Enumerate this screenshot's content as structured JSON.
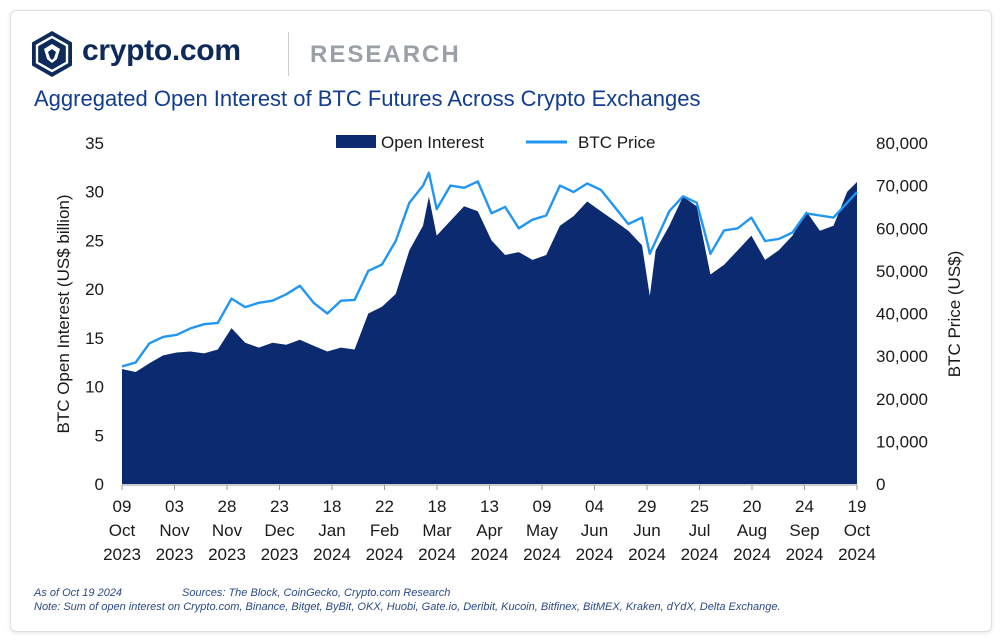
{
  "brand": {
    "name": "crypto.com",
    "section": "RESEARCH"
  },
  "title": "Aggregated Open Interest of BTC Futures Across Crypto Exchanges",
  "footer": {
    "asof": "As of Oct 19 2024",
    "sources": "Sources: The Block, CoinGecko, Crypto.com Research",
    "note": "Note: Sum of open interest on Crypto.com, Binance, Bitget, ByBit, OKX, Huobi, Gate.io, Deribit, Kucoin, Bitfinex, BitMEX, Kraken, dYdX, Delta Exchange."
  },
  "colors": {
    "open_interest": "#0b2a6f",
    "btc_price": "#2196f3",
    "title": "#123d8f"
  },
  "chart_data": {
    "type": "area",
    "x_label_note": "daily, 2023-10-09 to 2024-10-19",
    "ylabel_left": "BTC Open Interest (US$ billion)",
    "ylabel_right": "BTC Price (US$)",
    "ylim_left": [
      0,
      35
    ],
    "ylim_right": [
      0,
      80000
    ],
    "yticks_left": [
      "0",
      "5",
      "10",
      "15",
      "20",
      "25",
      "30",
      "35"
    ],
    "yticks_right": [
      "0",
      "10,000",
      "20,000",
      "30,000",
      "40,000",
      "50,000",
      "60,000",
      "70,000",
      "80,000"
    ],
    "xticks": [
      {
        "d": "09",
        "m": "Oct",
        "y": "2023"
      },
      {
        "d": "03",
        "m": "Nov",
        "y": "2023"
      },
      {
        "d": "28",
        "m": "Nov",
        "y": "2023"
      },
      {
        "d": "23",
        "m": "Dec",
        "y": "2023"
      },
      {
        "d": "18",
        "m": "Jan",
        "y": "2024"
      },
      {
        "d": "22",
        "m": "Feb",
        "y": "2024"
      },
      {
        "d": "18",
        "m": "Mar",
        "y": "2024"
      },
      {
        "d": "13",
        "m": "Apr",
        "y": "2024"
      },
      {
        "d": "09",
        "m": "May",
        "y": "2024"
      },
      {
        "d": "04",
        "m": "Jun",
        "y": "2024"
      },
      {
        "d": "29",
        "m": "Jun",
        "y": "2024"
      },
      {
        "d": "25",
        "m": "Jul",
        "y": "2024"
      },
      {
        "d": "20",
        "m": "Aug",
        "y": "2024"
      },
      {
        "d": "24",
        "m": "Sep",
        "y": "2024"
      },
      {
        "d": "19",
        "m": "Oct",
        "y": "2024"
      }
    ],
    "legend_position": "top-center",
    "grid": false,
    "series": [
      {
        "name": "Open Interest",
        "axis": "left",
        "unit": "US$ billion",
        "style": "area",
        "points": [
          [
            "2023-10-09",
            11.8
          ],
          [
            "2023-10-16",
            11.5
          ],
          [
            "2023-10-23",
            12.4
          ],
          [
            "2023-10-30",
            13.2
          ],
          [
            "2023-11-06",
            13.5
          ],
          [
            "2023-11-13",
            13.6
          ],
          [
            "2023-11-20",
            13.4
          ],
          [
            "2023-11-27",
            13.8
          ],
          [
            "2023-12-04",
            16.0
          ],
          [
            "2023-12-11",
            14.5
          ],
          [
            "2023-12-18",
            14.0
          ],
          [
            "2023-12-25",
            14.5
          ],
          [
            "2024-01-01",
            14.3
          ],
          [
            "2024-01-08",
            14.8
          ],
          [
            "2024-01-15",
            14.2
          ],
          [
            "2024-01-22",
            13.6
          ],
          [
            "2024-01-29",
            14.0
          ],
          [
            "2024-02-05",
            13.8
          ],
          [
            "2024-02-12",
            17.5
          ],
          [
            "2024-02-19",
            18.2
          ],
          [
            "2024-02-26",
            19.5
          ],
          [
            "2024-03-04",
            24.0
          ],
          [
            "2024-03-11",
            26.5
          ],
          [
            "2024-03-14",
            29.5
          ],
          [
            "2024-03-18",
            25.5
          ],
          [
            "2024-03-25",
            27.0
          ],
          [
            "2024-04-01",
            28.5
          ],
          [
            "2024-04-08",
            28.0
          ],
          [
            "2024-04-15",
            25.0
          ],
          [
            "2024-04-22",
            23.5
          ],
          [
            "2024-04-29",
            23.8
          ],
          [
            "2024-05-06",
            23.0
          ],
          [
            "2024-05-13",
            23.5
          ],
          [
            "2024-05-20",
            26.5
          ],
          [
            "2024-05-27",
            27.5
          ],
          [
            "2024-06-03",
            29.0
          ],
          [
            "2024-06-10",
            28.0
          ],
          [
            "2024-06-17",
            27.0
          ],
          [
            "2024-06-24",
            26.0
          ],
          [
            "2024-07-01",
            24.5
          ],
          [
            "2024-07-05",
            19.3
          ],
          [
            "2024-07-08",
            24.0
          ],
          [
            "2024-07-15",
            26.5
          ],
          [
            "2024-07-22",
            29.5
          ],
          [
            "2024-07-29",
            28.5
          ],
          [
            "2024-08-05",
            21.5
          ],
          [
            "2024-08-12",
            22.5
          ],
          [
            "2024-08-19",
            24.0
          ],
          [
            "2024-08-26",
            25.5
          ],
          [
            "2024-09-02",
            23.0
          ],
          [
            "2024-09-09",
            24.0
          ],
          [
            "2024-09-16",
            25.5
          ],
          [
            "2024-09-23",
            28.0
          ],
          [
            "2024-09-30",
            26.0
          ],
          [
            "2024-10-07",
            26.5
          ],
          [
            "2024-10-14",
            30.0
          ],
          [
            "2024-10-19",
            31.0
          ]
        ]
      },
      {
        "name": "BTC Price",
        "axis": "right",
        "unit": "US$",
        "style": "line",
        "points": [
          [
            "2023-10-09",
            27600
          ],
          [
            "2023-10-16",
            28500
          ],
          [
            "2023-10-23",
            33000
          ],
          [
            "2023-10-30",
            34500
          ],
          [
            "2023-11-06",
            35000
          ],
          [
            "2023-11-13",
            36500
          ],
          [
            "2023-11-20",
            37500
          ],
          [
            "2023-11-27",
            37800
          ],
          [
            "2023-12-04",
            43500
          ],
          [
            "2023-12-11",
            41500
          ],
          [
            "2023-12-18",
            42500
          ],
          [
            "2023-12-25",
            43000
          ],
          [
            "2024-01-01",
            44500
          ],
          [
            "2024-01-08",
            46500
          ],
          [
            "2024-01-15",
            42500
          ],
          [
            "2024-01-22",
            40000
          ],
          [
            "2024-01-29",
            43000
          ],
          [
            "2024-02-05",
            43200
          ],
          [
            "2024-02-12",
            50000
          ],
          [
            "2024-02-19",
            51500
          ],
          [
            "2024-02-26",
            57000
          ],
          [
            "2024-03-04",
            66000
          ],
          [
            "2024-03-11",
            70000
          ],
          [
            "2024-03-14",
            73000
          ],
          [
            "2024-03-18",
            64500
          ],
          [
            "2024-03-25",
            70000
          ],
          [
            "2024-04-01",
            69500
          ],
          [
            "2024-04-08",
            71000
          ],
          [
            "2024-04-15",
            63500
          ],
          [
            "2024-04-22",
            65000
          ],
          [
            "2024-04-29",
            60000
          ],
          [
            "2024-05-06",
            62000
          ],
          [
            "2024-05-13",
            63000
          ],
          [
            "2024-05-20",
            70000
          ],
          [
            "2024-05-27",
            68500
          ],
          [
            "2024-06-03",
            70500
          ],
          [
            "2024-06-10",
            69000
          ],
          [
            "2024-06-17",
            65000
          ],
          [
            "2024-06-24",
            61000
          ],
          [
            "2024-07-01",
            62500
          ],
          [
            "2024-07-05",
            54000
          ],
          [
            "2024-07-08",
            57000
          ],
          [
            "2024-07-15",
            64000
          ],
          [
            "2024-07-22",
            67500
          ],
          [
            "2024-07-29",
            66000
          ],
          [
            "2024-08-05",
            54000
          ],
          [
            "2024-08-12",
            59500
          ],
          [
            "2024-08-19",
            60000
          ],
          [
            "2024-08-26",
            62500
          ],
          [
            "2024-09-02",
            57000
          ],
          [
            "2024-09-09",
            57500
          ],
          [
            "2024-09-16",
            59000
          ],
          [
            "2024-09-23",
            63500
          ],
          [
            "2024-09-30",
            63000
          ],
          [
            "2024-10-07",
            62500
          ],
          [
            "2024-10-14",
            66000
          ],
          [
            "2024-10-19",
            68500
          ]
        ]
      }
    ]
  }
}
